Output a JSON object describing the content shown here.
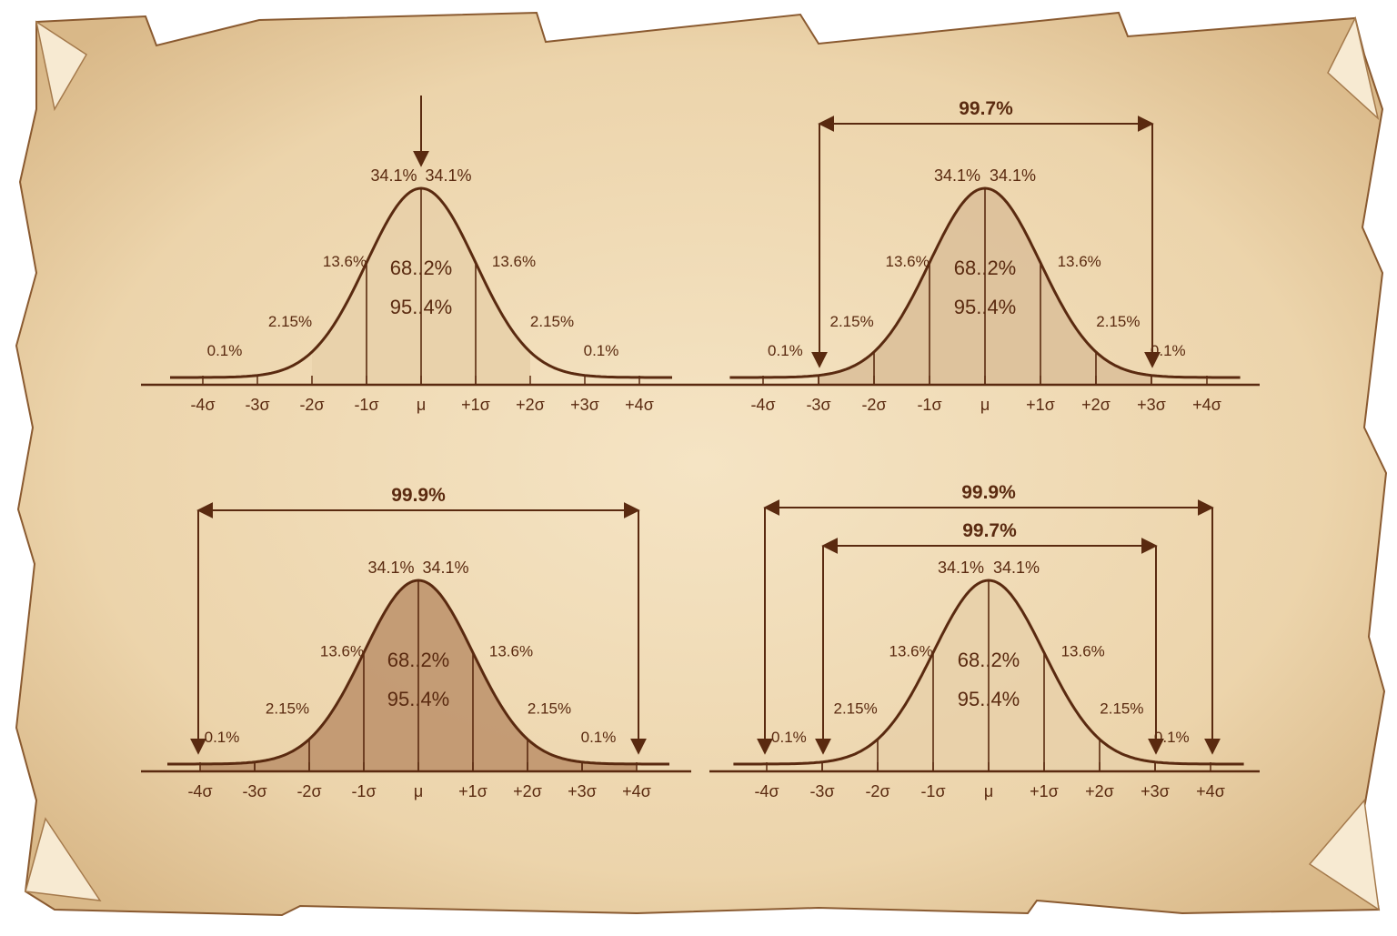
{
  "colors": {
    "ink": "#5a2a10",
    "paper": "#f0dcb6",
    "paper_edge": "#c9a374",
    "fill_light": "#e8d0aa",
    "fill_medium": "#dcc09a",
    "fill_dark": "#bf956e"
  },
  "x_ticks": [
    "-4σ",
    "-3σ",
    "-2σ",
    "-1σ",
    "μ",
    "+1σ",
    "+2σ",
    "+3σ",
    "+4σ"
  ],
  "band_labels": {
    "center_left": "34.1%",
    "center_right": "34.1%",
    "one_left": "13.6%",
    "one_right": "13.6%",
    "two_left": "2.15%",
    "two_right": "2.15%",
    "tail_left": "0.1%",
    "tail_right": "0.1%"
  },
  "center_labels": {
    "inner": "68..2%",
    "outer": "95..4%"
  },
  "span_labels": {
    "three_sigma": "99.7%",
    "four_sigma": "99.9%"
  },
  "diagrams": [
    {
      "id": "top-left",
      "shading": "center-2sigma",
      "fill": "fill_light",
      "top_arrow": true,
      "spans": []
    },
    {
      "id": "top-right",
      "shading": "3sigma",
      "fill": "fill_medium",
      "top_arrow": false,
      "spans": [
        "three_sigma"
      ]
    },
    {
      "id": "bottom-left",
      "shading": "4sigma",
      "fill": "fill_dark",
      "top_arrow": false,
      "spans": [
        "four_sigma"
      ]
    },
    {
      "id": "bottom-right",
      "shading": "3sigma",
      "fill": "fill_light",
      "top_arrow": false,
      "spans": [
        "four_sigma",
        "three_sigma"
      ]
    }
  ]
}
